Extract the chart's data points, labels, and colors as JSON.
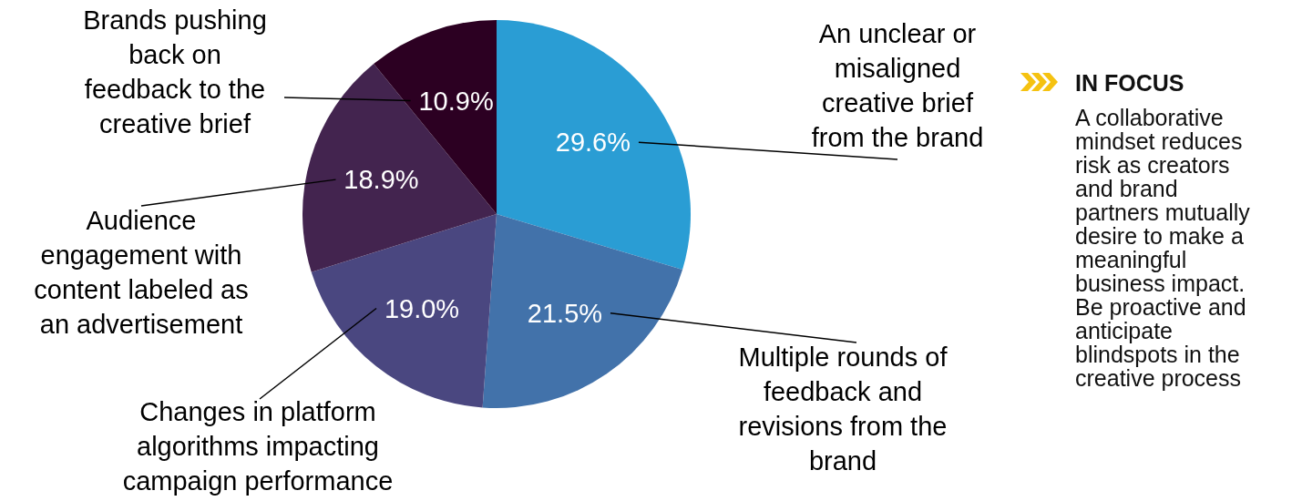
{
  "chart_data": {
    "type": "pie",
    "categories": [
      "An unclear or misaligned creative brief from the brand",
      "Multiple rounds of feedback and revisions from the brand",
      "Changes in platform algorithms impacting campaign performance",
      "Audience engagement with content labeled as an advertisement",
      "Brands pushing back on feedback to the creative brief"
    ],
    "values": [
      29.6,
      21.5,
      19.0,
      18.9,
      10.9
    ],
    "value_labels": [
      "29.6%",
      "21.5%",
      "19.0%",
      "18.9%",
      "10.9%"
    ],
    "colors": [
      "#2a9dd4",
      "#4272aa",
      "#4a4780",
      "#43244f",
      "#2c0022"
    ],
    "annotations": [
      "IN FOCUS",
      "A collaborative mindset reduces risk as creators and brand partners mutually desire to make a meaningful business impact. Be proactive and anticipate blindspots in the creative process"
    ]
  }
}
